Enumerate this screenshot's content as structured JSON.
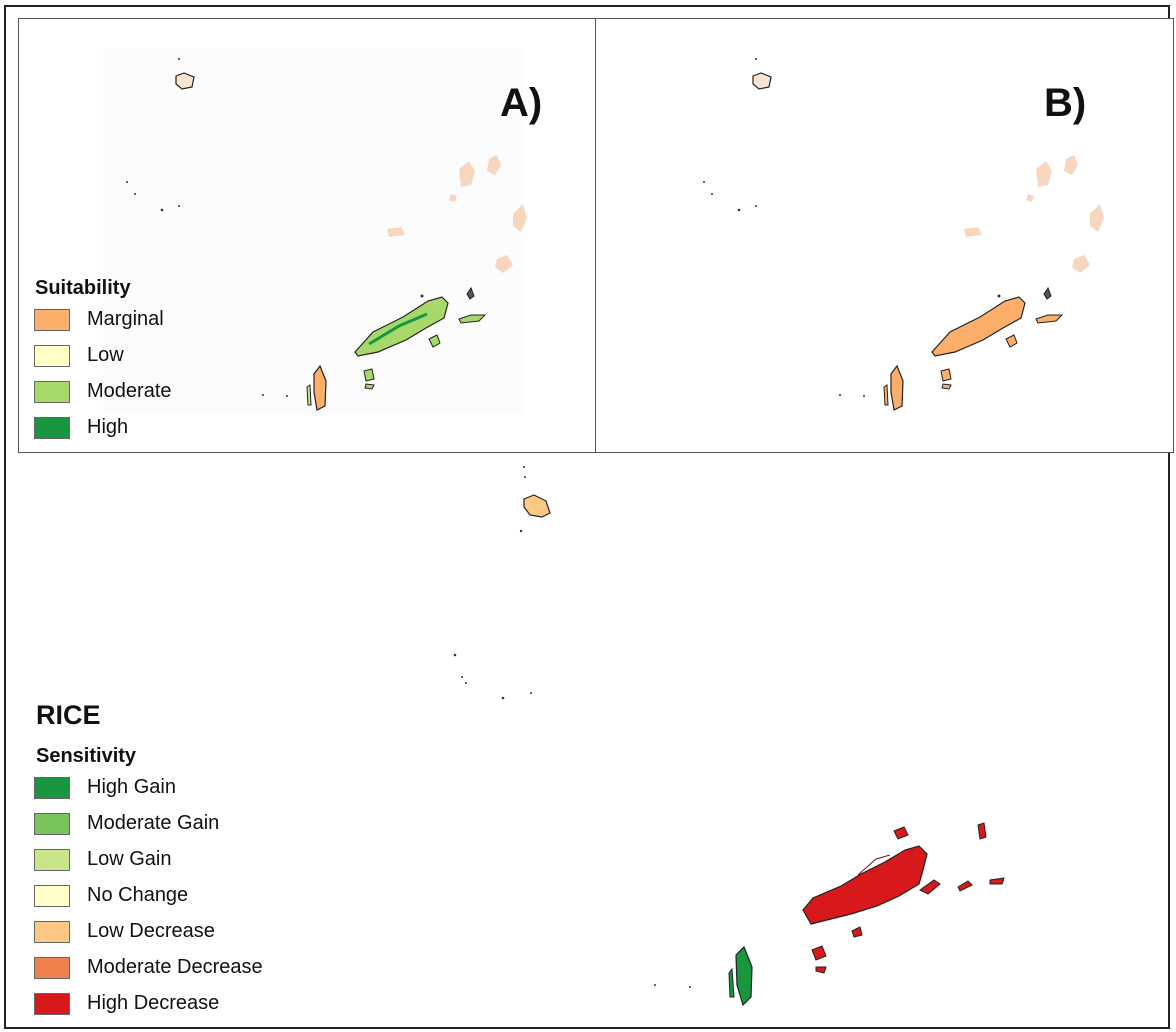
{
  "panels": {
    "a": {
      "label": "A)"
    },
    "b": {
      "label": "B)"
    }
  },
  "legend_suitability": {
    "title": "Suitability",
    "items": [
      {
        "label": "Marginal",
        "color": "#FDAE6B"
      },
      {
        "label": "Low",
        "color": "#FFFFC7"
      },
      {
        "label": "Moderate",
        "color": "#A6D96A"
      },
      {
        "label": "High",
        "color": "#1A9641"
      }
    ]
  },
  "crop": {
    "name": "RICE"
  },
  "legend_sensitivity": {
    "title": "Sensitivity",
    "items": [
      {
        "label": "High Gain",
        "color": "#1A9641"
      },
      {
        "label": "Moderate Gain",
        "color": "#78C35A"
      },
      {
        "label": "Low Gain",
        "color": "#C7E68A"
      },
      {
        "label": "No Change",
        "color": "#FFFFC7"
      },
      {
        "label": "Low Decrease",
        "color": "#FDC884"
      },
      {
        "label": "Moderate Decrease",
        "color": "#F0804C"
      },
      {
        "label": "High Decrease",
        "color": "#D7191C"
      }
    ]
  },
  "colors": {
    "island_outline": "#222222",
    "faded_islands": "#F8D6BE"
  }
}
